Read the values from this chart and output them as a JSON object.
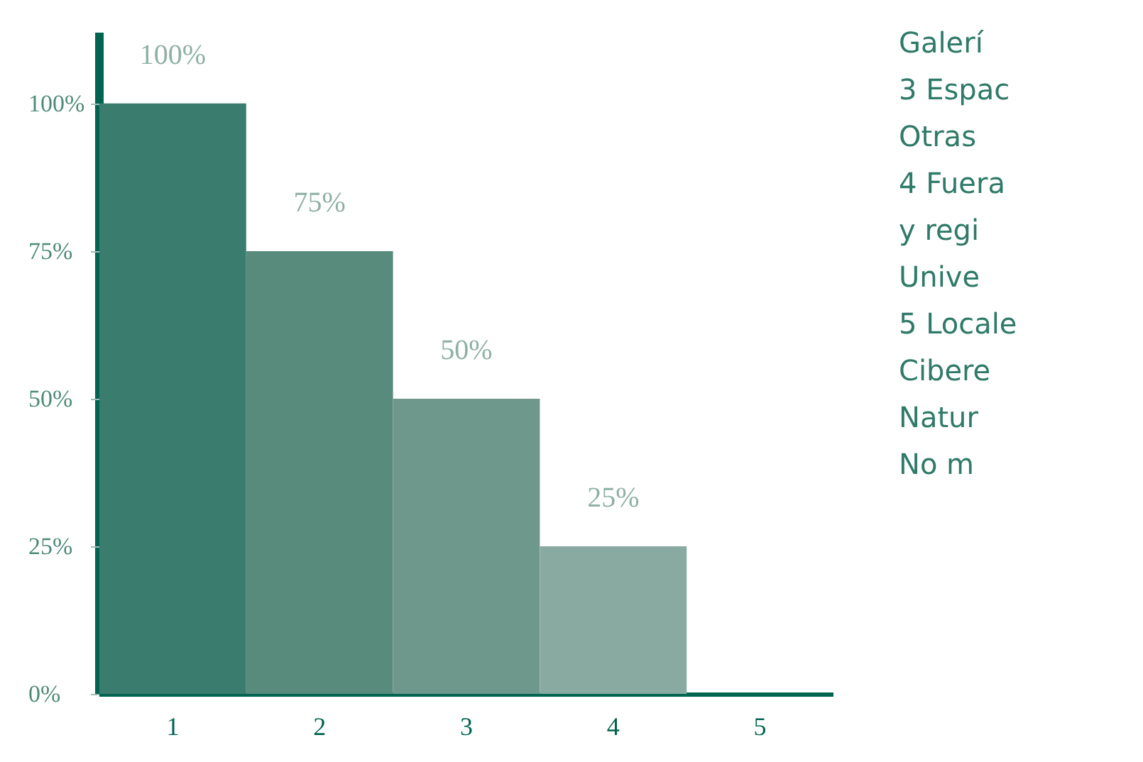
{
  "chart_data": {
    "type": "bar",
    "categories": [
      "1",
      "2",
      "3",
      "4",
      "5"
    ],
    "values": [
      100,
      75,
      50,
      25,
      0
    ],
    "colors": [
      "#3a7d6e",
      "#588b7c",
      "#6f988c",
      "#89aaa1",
      "#a3bab4"
    ],
    "value_labels": [
      "100%",
      "75%",
      "50%",
      "25%",
      null
    ],
    "ylim": [
      0,
      112
    ],
    "yticks": [
      {
        "value": 0,
        "label": "0%"
      },
      {
        "value": 25,
        "label": "25%"
      },
      {
        "value": 50,
        "label": "50%"
      },
      {
        "value": 75,
        "label": "75%"
      },
      {
        "value": 100,
        "label": "100%"
      }
    ],
    "grid": false,
    "annotations": [
      "Galerí",
      "3 Espac",
      "Otras",
      "4 Fuera",
      "y regi",
      "Unive",
      "5 Locale",
      "Cibere",
      "Natur",
      "No m"
    ]
  }
}
